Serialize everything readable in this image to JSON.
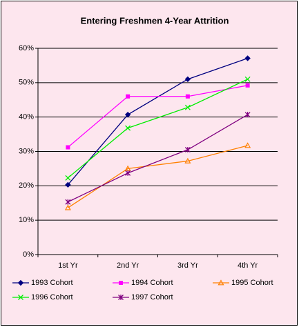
{
  "chart_data": {
    "type": "line",
    "title": "Entering Freshmen 4-Year Attrition",
    "categories": [
      "1st Yr",
      "2nd Yr",
      "3rd Yr",
      "4th Yr"
    ],
    "series": [
      {
        "name": "1993 Cohort",
        "color": "#000080",
        "marker": "diamond",
        "values": [
          20.3,
          40.7,
          51.0,
          57.1
        ]
      },
      {
        "name": "1994 Cohort",
        "color": "#ff00ff",
        "marker": "square",
        "values": [
          31.2,
          46.0,
          46.0,
          49.2
        ]
      },
      {
        "name": "1995 Cohort",
        "color": "#ff8000",
        "marker": "triangle",
        "values": [
          13.6,
          25.0,
          27.2,
          31.7
        ]
      },
      {
        "name": "1996 Cohort",
        "color": "#00ee00",
        "marker": "x",
        "values": [
          22.3,
          36.8,
          42.8,
          51.0
        ]
      },
      {
        "name": "1997 Cohort",
        "color": "#800080",
        "marker": "star",
        "values": [
          15.3,
          23.7,
          30.5,
          40.7
        ]
      }
    ],
    "ylim": [
      0,
      60
    ],
    "yticks": [
      {
        "value": 0,
        "label": "0%"
      },
      {
        "value": 10,
        "label": "10%"
      },
      {
        "value": 20,
        "label": "20%"
      },
      {
        "value": 30,
        "label": "30%"
      },
      {
        "value": 40,
        "label": "40%"
      },
      {
        "value": 50,
        "label": "50%"
      },
      {
        "value": 60,
        "label": "60%"
      }
    ],
    "grid": true,
    "legend": "bottom"
  }
}
